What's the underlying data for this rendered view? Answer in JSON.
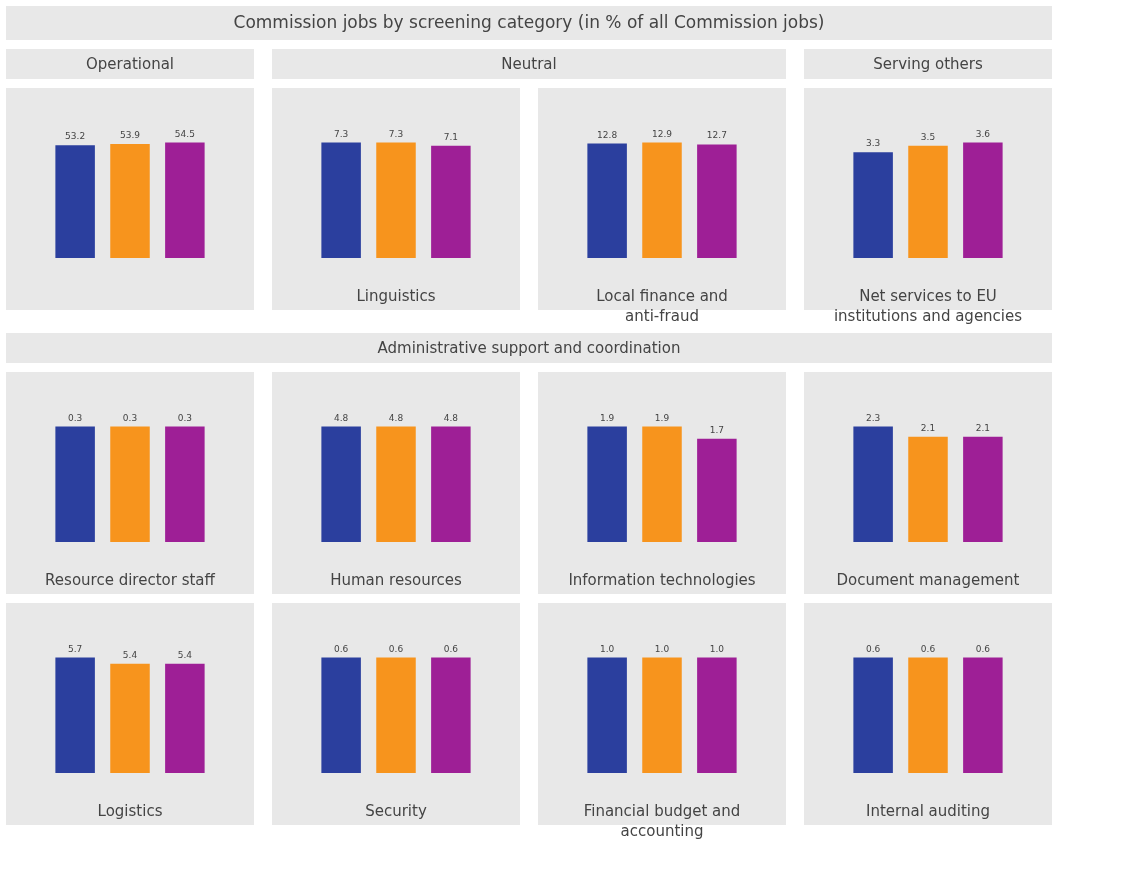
{
  "chart_data": [
    {
      "type": "bar",
      "annotations": [
        "Commission jobs by screening category (in % of all Commission jobs)",
        "Operational",
        "Neutral",
        "Serving others",
        "Administrative support and coordination"
      ],
      "categories": [
        null,
        null,
        null
      ],
      "values": [
        53.2,
        53.9,
        54.5
      ],
      "value_labels": [
        "53.2",
        "53.9",
        "54.5"
      ],
      "colors": [
        "#2b3f9e",
        "#f7941d",
        "#9e1f96"
      ],
      "tick_labels": false
    },
    {
      "type": "bar",
      "xlabel": "Linguistics",
      "categories": [
        null,
        null,
        null
      ],
      "values": [
        7.3,
        7.3,
        7.1
      ],
      "value_labels": [
        "7.3",
        "7.3",
        "7.1"
      ],
      "colors": [
        "#2b3f9e",
        "#f7941d",
        "#9e1f96"
      ],
      "tick_labels": false
    },
    {
      "type": "bar",
      "xlabel": "Local finance and anti-fraud",
      "categories": [
        null,
        null,
        null
      ],
      "values": [
        12.8,
        12.9,
        12.7
      ],
      "value_labels": [
        "12.8",
        "12.9",
        "12.7"
      ],
      "colors": [
        "#2b3f9e",
        "#f7941d",
        "#9e1f96"
      ],
      "tick_labels": false
    },
    {
      "type": "bar",
      "xlabel": "Net services to EU institutions and agencies",
      "categories": [
        null,
        null,
        null
      ],
      "values": [
        3.3,
        3.5,
        3.6
      ],
      "value_labels": [
        "3.3",
        "3.5",
        "3.6"
      ],
      "colors": [
        "#2b3f9e",
        "#f7941d",
        "#9e1f96"
      ],
      "tick_labels": false
    },
    {
      "type": "bar",
      "xlabel": "Resource director staff",
      "categories": [
        null,
        null,
        null
      ],
      "values": [
        0.3,
        0.3,
        0.3
      ],
      "value_labels": [
        "0.3",
        "0.3",
        "0.3"
      ],
      "colors": [
        "#2b3f9e",
        "#f7941d",
        "#9e1f96"
      ],
      "tick_labels": false
    },
    {
      "type": "bar",
      "xlabel": "Human resources",
      "categories": [
        null,
        null,
        null
      ],
      "values": [
        4.8,
        4.8,
        4.8
      ],
      "value_labels": [
        "4.8",
        "4.8",
        "4.8"
      ],
      "colors": [
        "#2b3f9e",
        "#f7941d",
        "#9e1f96"
      ],
      "tick_labels": false
    },
    {
      "type": "bar",
      "xlabel": "Information technologies",
      "categories": [
        null,
        null,
        null
      ],
      "values": [
        1.9,
        1.9,
        1.7
      ],
      "value_labels": [
        "1.9",
        "1.9",
        "1.7"
      ],
      "colors": [
        "#2b3f9e",
        "#f7941d",
        "#9e1f96"
      ],
      "tick_labels": false
    },
    {
      "type": "bar",
      "xlabel": "Document management",
      "categories": [
        null,
        null,
        null
      ],
      "values": [
        2.3,
        2.1,
        2.1
      ],
      "value_labels": [
        "2.3",
        "2.1",
        "2.1"
      ],
      "colors": [
        "#2b3f9e",
        "#f7941d",
        "#9e1f96"
      ],
      "tick_labels": false
    },
    {
      "type": "bar",
      "xlabel": "Logistics",
      "categories": [
        null,
        null,
        null
      ],
      "values": [
        5.7,
        5.4,
        5.4
      ],
      "value_labels": [
        "5.7",
        "5.4",
        "5.4"
      ],
      "colors": [
        "#2b3f9e",
        "#f7941d",
        "#9e1f96"
      ],
      "tick_labels": false
    },
    {
      "type": "bar",
      "xlabel": "Security",
      "categories": [
        null,
        null,
        null
      ],
      "values": [
        0.6,
        0.6,
        0.6
      ],
      "value_labels": [
        "0.6",
        "0.6",
        "0.6"
      ],
      "colors": [
        "#2b3f9e",
        "#f7941d",
        "#9e1f96"
      ],
      "tick_labels": false
    },
    {
      "type": "bar",
      "xlabel": "Financial budget and accounting",
      "categories": [
        null,
        null,
        null
      ],
      "values": [
        1.0,
        1.0,
        1.0
      ],
      "value_labels": [
        "1.0",
        "1.0",
        "1.0"
      ],
      "colors": [
        "#2b3f9e",
        "#f7941d",
        "#9e1f96"
      ],
      "tick_labels": false
    },
    {
      "type": "bar",
      "xlabel": "Internal auditing",
      "categories": [
        null,
        null,
        null
      ],
      "values": [
        0.6,
        0.6,
        0.6
      ],
      "value_labels": [
        "0.6",
        "0.6",
        "0.6"
      ],
      "colors": [
        "#2b3f9e",
        "#f7941d",
        "#9e1f96"
      ],
      "tick_labels": false
    }
  ]
}
